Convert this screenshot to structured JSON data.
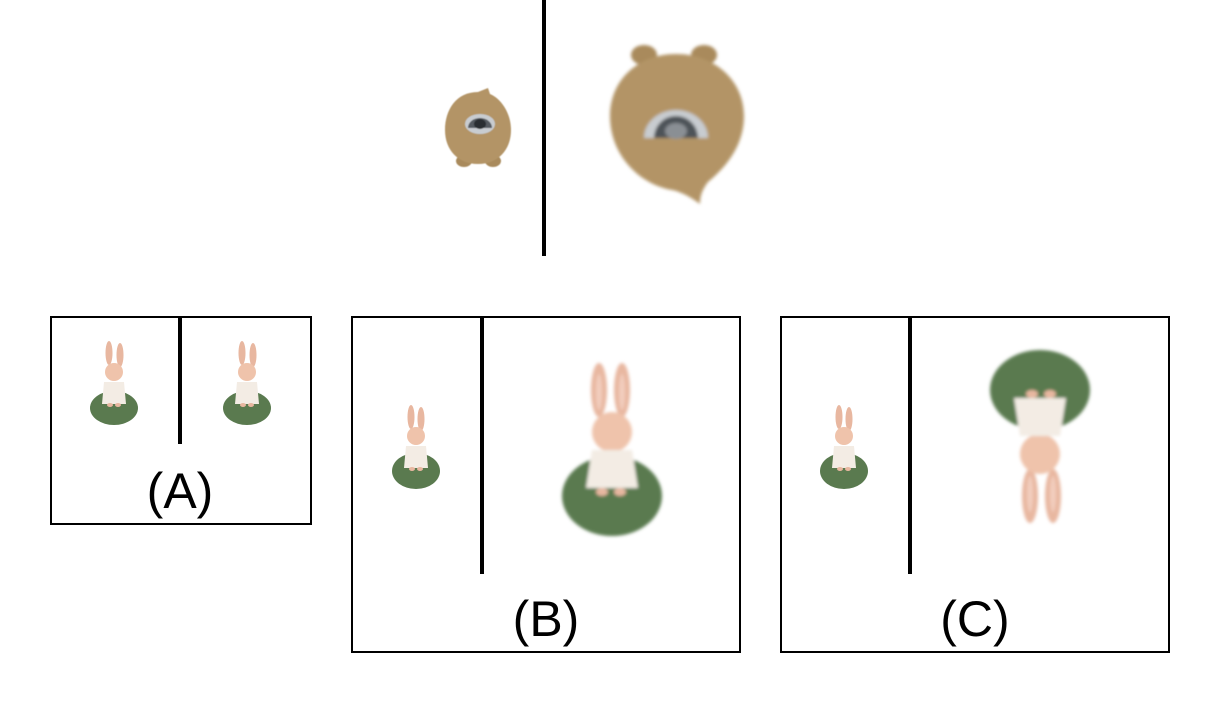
{
  "options": [
    {
      "label": "(A)"
    },
    {
      "label": "(B)"
    },
    {
      "label": "(C)"
    }
  ]
}
